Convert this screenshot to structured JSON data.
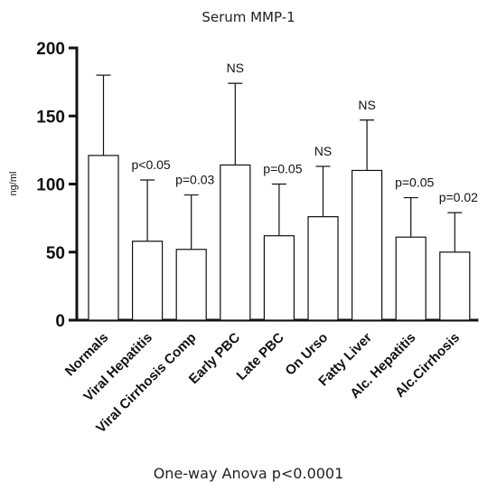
{
  "chart_data": {
    "type": "bar",
    "title": "Serum MMP-1",
    "ylabel": "ng/ml",
    "xlabel": "",
    "ylim": [
      0,
      200
    ],
    "yticks": [
      0,
      50,
      100,
      150,
      200
    ],
    "categories": [
      "Normals",
      "Viral Hepatitis",
      "Viral Cirrhosis Comp",
      "Early PBC",
      "Late PBC",
      "On Urso",
      "Fatty Liver",
      "Alc. Hepatitis",
      "Alc.Cirrhosis"
    ],
    "values": [
      121,
      58,
      52,
      114,
      62,
      76,
      110,
      61,
      50
    ],
    "error_upper": [
      180,
      103,
      92,
      174,
      100,
      113,
      147,
      90,
      79
    ],
    "annotations": [
      "",
      "p<0.05",
      "p=0.03",
      "NS",
      "p=0.05",
      "NS",
      "NS",
      "p=0.05",
      "p=0.02"
    ],
    "footnote": "One-way Anova p<0.0001",
    "grid": false,
    "legend": "none"
  }
}
